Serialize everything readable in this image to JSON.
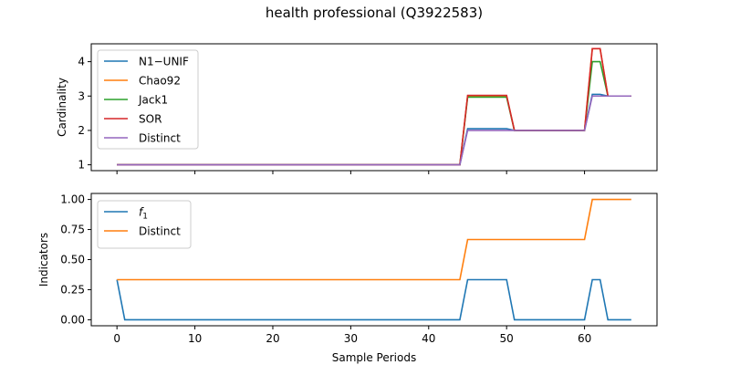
{
  "figure": {
    "title": "health professional (Q3922583)",
    "xlabel": "Sample Periods"
  },
  "chart_data": [
    {
      "type": "line",
      "title": "",
      "xlabel": "",
      "ylabel": "Cardinality",
      "xlim": [
        -3.3,
        69.3
      ],
      "ylim": [
        0.83,
        4.52
      ],
      "xticks": [
        0,
        10,
        20,
        30,
        40,
        50,
        60
      ],
      "yticks": [
        1,
        2,
        3,
        4
      ],
      "grid": false,
      "legend_position": "upper-left",
      "series": [
        {
          "name": "N1−UNIF",
          "color": "#1f77b4",
          "points": [
            [
              0,
              1
            ],
            [
              44,
              1
            ],
            [
              45,
              2.05
            ],
            [
              50,
              2.05
            ],
            [
              51,
              2
            ],
            [
              60,
              2
            ],
            [
              61,
              3.05
            ],
            [
              62,
              3.05
            ],
            [
              63,
              3
            ],
            [
              66,
              3
            ]
          ]
        },
        {
          "name": "Chao92",
          "color": "#ff7f0e",
          "points": [
            [
              0,
              1
            ],
            [
              44,
              1
            ],
            [
              45,
              3
            ],
            [
              50,
              3
            ],
            [
              51,
              2
            ],
            [
              60,
              2
            ],
            [
              61,
              4.38
            ],
            [
              62,
              4.38
            ],
            [
              63,
              3
            ],
            [
              66,
              3
            ]
          ]
        },
        {
          "name": "Jack1",
          "color": "#2ca02c",
          "points": [
            [
              0,
              1
            ],
            [
              44,
              1
            ],
            [
              45,
              2.97
            ],
            [
              50,
              2.97
            ],
            [
              51,
              2
            ],
            [
              60,
              2
            ],
            [
              61,
              4
            ],
            [
              62,
              4
            ],
            [
              63,
              3
            ],
            [
              66,
              3
            ]
          ]
        },
        {
          "name": "SOR",
          "color": "#d62728",
          "points": [
            [
              0,
              1
            ],
            [
              44,
              1
            ],
            [
              45,
              3.02
            ],
            [
              50,
              3.02
            ],
            [
              51,
              2
            ],
            [
              60,
              2
            ],
            [
              61,
              4.38
            ],
            [
              62,
              4.38
            ],
            [
              63,
              3
            ],
            [
              66,
              3
            ]
          ]
        },
        {
          "name": "Distinct",
          "color": "#9467bd",
          "points": [
            [
              0,
              1
            ],
            [
              44,
              1
            ],
            [
              45,
              2
            ],
            [
              50,
              2
            ],
            [
              51,
              2
            ],
            [
              60,
              2
            ],
            [
              61,
              3
            ],
            [
              62,
              3
            ],
            [
              63,
              3
            ],
            [
              66,
              3
            ]
          ]
        }
      ]
    },
    {
      "type": "line",
      "title": "",
      "xlabel": "Sample Periods",
      "ylabel": "Indicators",
      "xlim": [
        -3.3,
        69.3
      ],
      "ylim": [
        -0.05,
        1.05
      ],
      "xticks": [
        0,
        10,
        20,
        30,
        40,
        50,
        60
      ],
      "yticks": [
        0.0,
        0.25,
        0.5,
        0.75,
        1.0
      ],
      "ytick_labels": [
        "0.00",
        "0.25",
        "0.50",
        "0.75",
        "1.00"
      ],
      "grid": false,
      "legend_position": "upper-left",
      "series": [
        {
          "name": "f1",
          "name_main": "f",
          "name_sub": "1",
          "color": "#1f77b4",
          "points": [
            [
              0,
              0.333
            ],
            [
              1,
              0
            ],
            [
              44,
              0
            ],
            [
              45,
              0.333
            ],
            [
              50,
              0.333
            ],
            [
              51,
              0
            ],
            [
              60,
              0
            ],
            [
              61,
              0.333
            ],
            [
              62,
              0.333
            ],
            [
              63,
              0
            ],
            [
              66,
              0
            ]
          ]
        },
        {
          "name": "Distinct",
          "color": "#ff7f0e",
          "points": [
            [
              0,
              0.333
            ],
            [
              44,
              0.333
            ],
            [
              45,
              0.667
            ],
            [
              60,
              0.667
            ],
            [
              61,
              1
            ],
            [
              66,
              1
            ]
          ]
        }
      ]
    }
  ]
}
